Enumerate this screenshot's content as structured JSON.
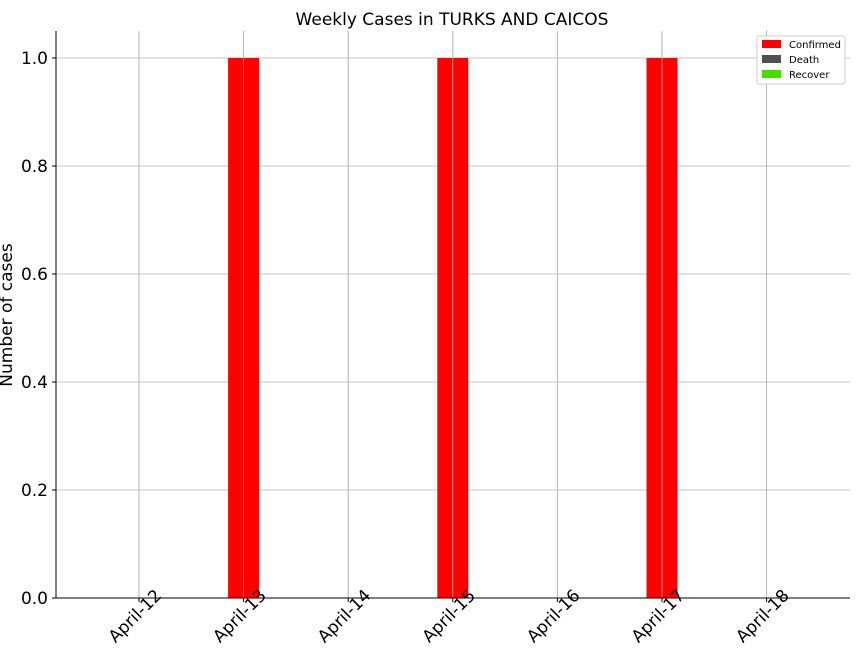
{
  "chart_data": {
    "type": "bar",
    "title": "Weekly Cases in TURKS AND CAICOS",
    "ylabel": "Number of cases",
    "xlabel": "",
    "categories": [
      "April-12",
      "April-13",
      "April-14",
      "April-15",
      "April-16",
      "April-17",
      "April-18"
    ],
    "series": [
      {
        "name": "Confirmed",
        "color": "#ff0000",
        "values": [
          0,
          1,
          0,
          1,
          0,
          1,
          0
        ]
      },
      {
        "name": "Death",
        "color": "#505050",
        "values": [
          0,
          0,
          0,
          0,
          0,
          0,
          0
        ]
      },
      {
        "name": "Recover",
        "color": "#44dd00",
        "values": [
          0,
          0,
          0,
          0,
          0,
          0,
          0
        ]
      }
    ],
    "ylim": [
      0,
      1.05
    ],
    "yticks": [
      "0.0",
      "0.2",
      "0.4",
      "0.6",
      "0.8",
      "1.0"
    ],
    "grid": true,
    "legend_position": "top-right"
  }
}
